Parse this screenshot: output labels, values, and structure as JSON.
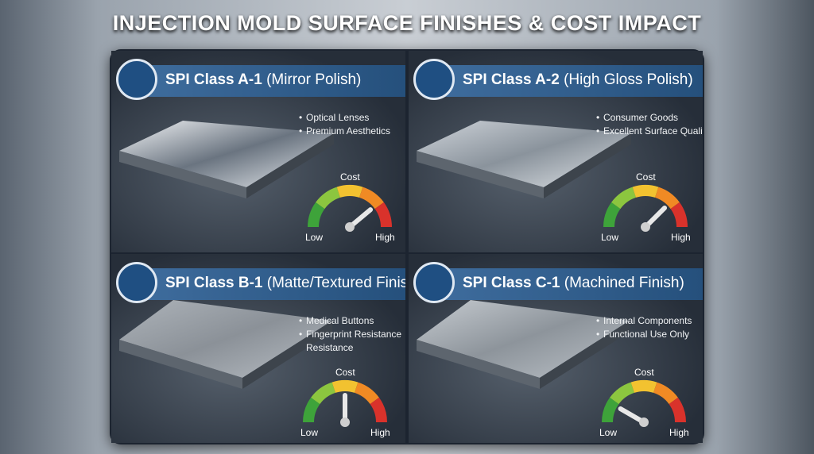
{
  "title": "INJECTION MOLD SURFACE FINISHES & COST IMPACT",
  "panels": [
    {
      "class": "SPI Class A-1",
      "finish": "(Mirror Polish)",
      "bullets": [
        "Optical Lenses",
        "Premium Aesthetics"
      ],
      "gauge": {
        "label": "Cost",
        "low": "Low",
        "high": "High"
      }
    },
    {
      "class": "SPI Class A-2",
      "finish": "(High Gloss Polish)",
      "bullets": [
        "Consumer Goods",
        "Excellent Surface Quality"
      ],
      "gauge": {
        "label": "Cost",
        "low": "Low",
        "high": "High"
      }
    },
    {
      "class": "SPI Class B-1",
      "finish": "(Matte/Textured Finish)",
      "bullets": [
        "Medical Buttons",
        "Fingerprint Resistance Resistance"
      ],
      "gauge": {
        "label": "Cost",
        "low": "Low",
        "high": "High"
      }
    },
    {
      "class": "SPI Class C-1",
      "finish": "(Machined Finish)",
      "bullets": [
        "Internal Components",
        "Functional Use Only"
      ],
      "gauge": {
        "label": "Cost",
        "low": "Low",
        "high": "High"
      }
    }
  ]
}
